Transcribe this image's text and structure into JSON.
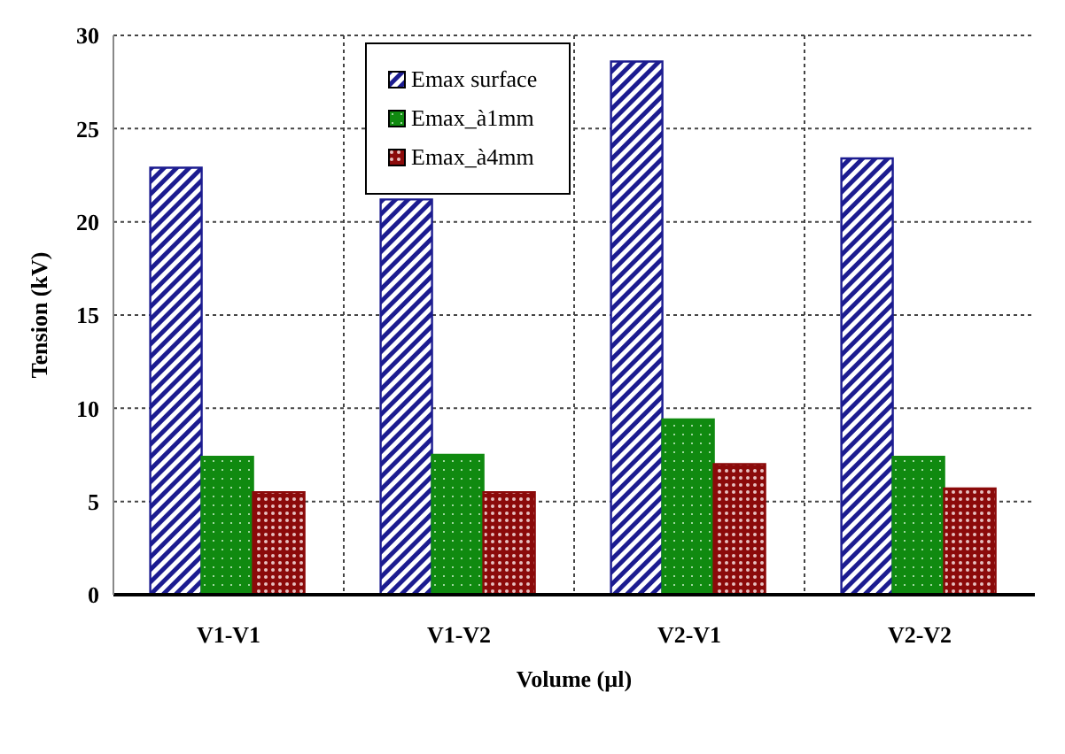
{
  "chart_data": {
    "type": "bar",
    "xlabel": "Volume (µl)",
    "ylabel": "Tension (kV)",
    "categories": [
      "V1-V1",
      "V1-V2",
      "V2-V1",
      "V2-V2"
    ],
    "series": [
      {
        "name": "Emax  surface",
        "color": "#1c1c90",
        "values": [
          22.9,
          21.2,
          28.6,
          23.4
        ]
      },
      {
        "name": "Emax_à1mm",
        "color": "#108a10",
        "values": [
          7.4,
          7.5,
          9.4,
          7.4
        ]
      },
      {
        "name": "Emax_à4mm",
        "color": "#8b0a0a",
        "values": [
          5.5,
          5.5,
          7.0,
          5.7
        ]
      }
    ],
    "ylim": [
      0,
      30
    ],
    "yticks": [
      0,
      5,
      10,
      15,
      20,
      25,
      30
    ],
    "grid": true,
    "legend": "top"
  }
}
